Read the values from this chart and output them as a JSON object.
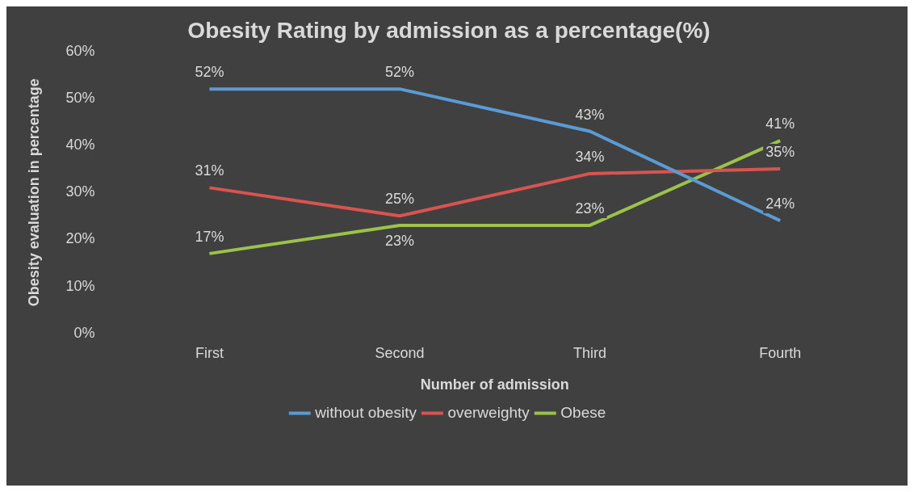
{
  "chart_data": {
    "type": "line",
    "title": "Obesity Rating by admission as a percentage(%)",
    "xlabel": "Number of admission",
    "ylabel": "Obesity evaluation in percentage",
    "categories": [
      "First",
      "Second",
      "Third",
      "Fourth"
    ],
    "series": [
      {
        "name": "without obesity",
        "color": "#5b9bd5",
        "values": [
          52,
          52,
          43,
          24
        ],
        "value_labels": [
          "52%",
          "52%",
          "43%",
          "24%"
        ]
      },
      {
        "name": "overweighty",
        "color": "#d9534f",
        "values": [
          31,
          25,
          34,
          35
        ],
        "value_labels": [
          "31%",
          "25%",
          "34%",
          "35%"
        ]
      },
      {
        "name": "Obese",
        "color": "#9bc34a",
        "values": [
          17,
          23,
          23,
          41
        ],
        "value_labels": [
          "17%",
          "23%",
          "23%",
          "41%"
        ]
      }
    ],
    "ylim": [
      0,
      60
    ],
    "yticks": [
      {
        "value": 0,
        "label": "0%"
      },
      {
        "value": 10,
        "label": "10%"
      },
      {
        "value": 20,
        "label": "20%"
      },
      {
        "value": 30,
        "label": "30%"
      },
      {
        "value": 40,
        "label": "40%"
      },
      {
        "value": 50,
        "label": "50%"
      },
      {
        "value": 60,
        "label": "60%"
      }
    ],
    "grid": false,
    "legend": "bottom",
    "marker": "none",
    "line_style": "solid"
  }
}
